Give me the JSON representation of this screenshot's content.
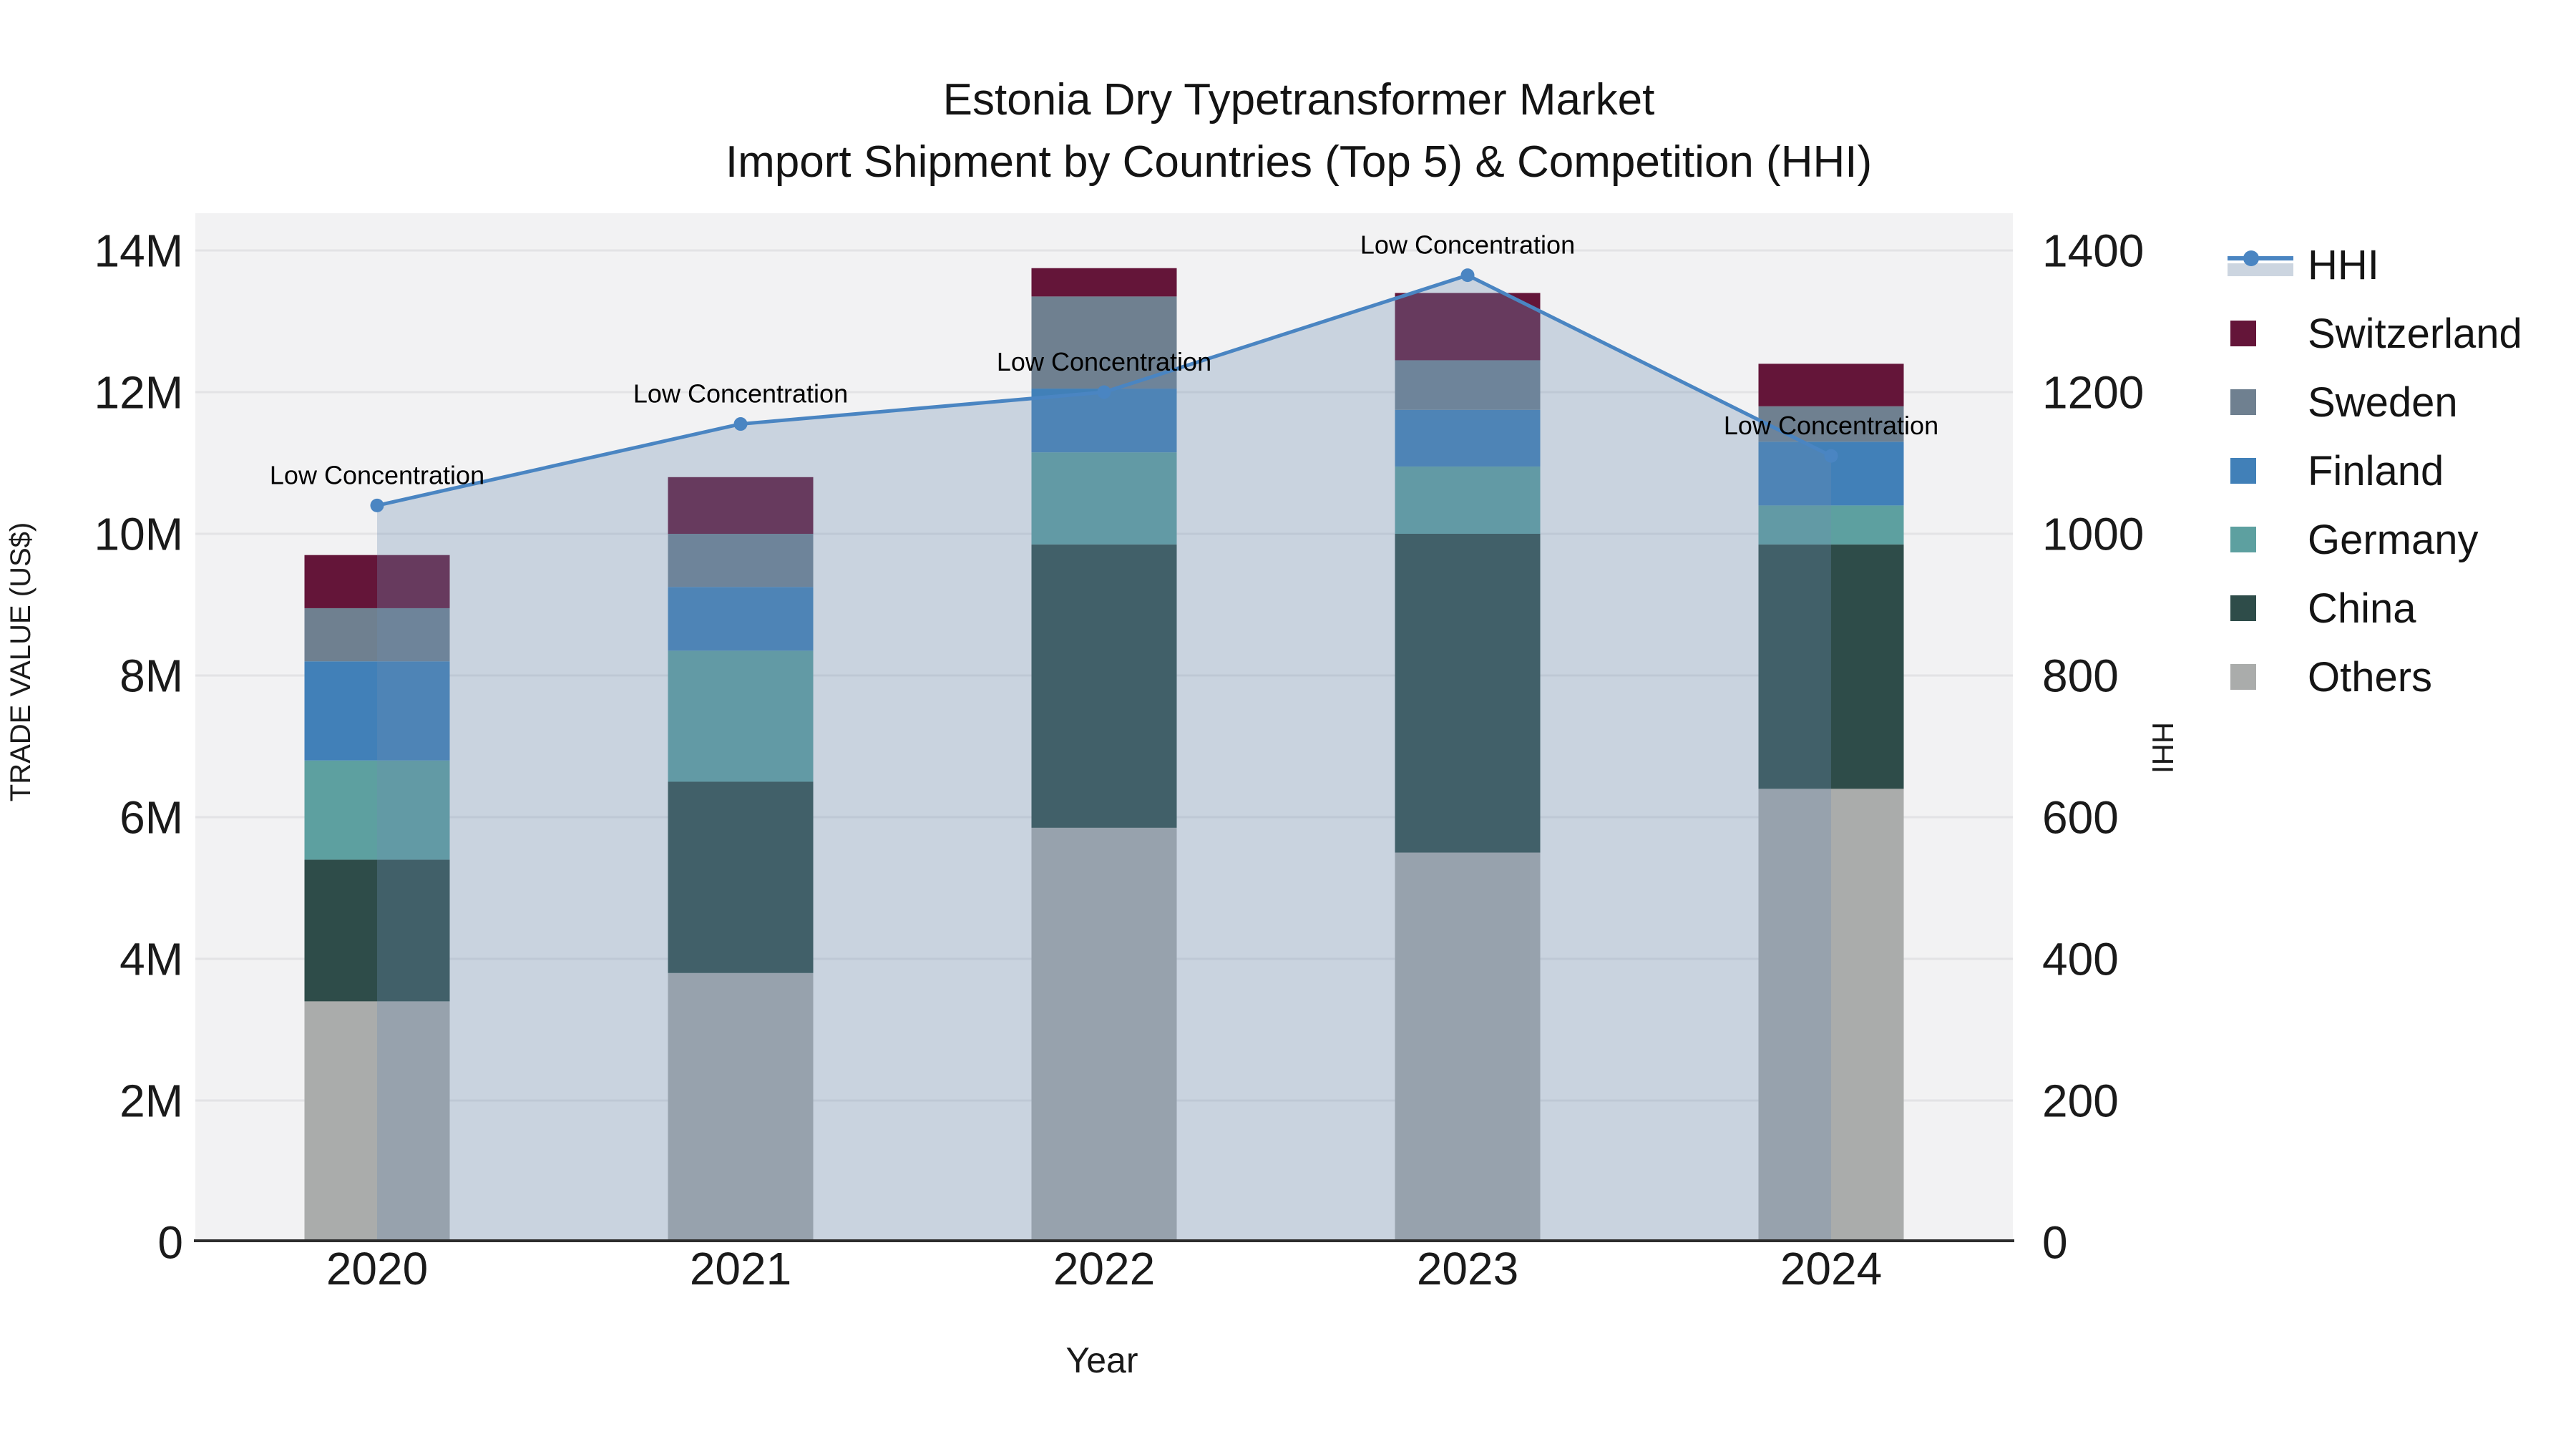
{
  "title": {
    "line1": "Estonia Dry Typetransformer Market",
    "line2": "Import Shipment by Countries (Top 5) & Competition (HHI)"
  },
  "axes": {
    "x": {
      "title": "Year",
      "tick_labels": [
        "2020",
        "2021",
        "2022",
        "2023",
        "2024"
      ]
    },
    "left": {
      "title": "TRADE VALUE (US$)",
      "tick_labels": [
        "0",
        "2M",
        "4M",
        "6M",
        "8M",
        "10M",
        "12M",
        "14M"
      ],
      "tick_values_millions": [
        0,
        2,
        4,
        6,
        8,
        10,
        12,
        14
      ],
      "range_millions": [
        0,
        14
      ]
    },
    "right": {
      "title": "HHI",
      "tick_labels": [
        "0",
        "200",
        "400",
        "600",
        "800",
        "1000",
        "1200",
        "1400"
      ],
      "tick_values": [
        0,
        200,
        400,
        600,
        800,
        1000,
        1200,
        1400
      ],
      "range": [
        0,
        1400
      ]
    }
  },
  "legend": {
    "items": [
      "HHI",
      "Switzerland",
      "Sweden",
      "Finland",
      "Germany",
      "China",
      "Others"
    ]
  },
  "chart_data": {
    "type": "bar",
    "subtype": "stacked-bars-with-hhi-line-area",
    "title": "Estonia Dry Typetransformer Market — Import Shipment by Countries (Top 5) & Competition (HHI)",
    "categories": [
      "2020",
      "2021",
      "2022",
      "2023",
      "2024"
    ],
    "xlabel": "Year",
    "ylabel_left": "TRADE VALUE (US$)",
    "ylabel_right": "HHI",
    "ylim_left_millions": [
      0,
      14
    ],
    "ylim_right": [
      0,
      1400
    ],
    "grid": true,
    "legend_position": "right",
    "bar_value_unit": "million US$",
    "stack_order": "bottom-to-top",
    "series": [
      {
        "name": "Others",
        "color": "#aaacab",
        "values_millions": [
          3.4,
          3.8,
          5.85,
          5.5,
          6.4
        ]
      },
      {
        "name": "China",
        "color": "#2e4c49",
        "values_millions": [
          2.0,
          2.7,
          4.0,
          4.5,
          3.45
        ]
      },
      {
        "name": "Germany",
        "color": "#5da0a0",
        "values_millions": [
          1.4,
          1.85,
          1.3,
          0.95,
          0.55
        ]
      },
      {
        "name": "Finland",
        "color": "#4180b8",
        "values_millions": [
          1.4,
          0.9,
          0.9,
          0.8,
          0.9
        ]
      },
      {
        "name": "Sweden",
        "color": "#6f8090",
        "values_millions": [
          0.75,
          0.75,
          1.3,
          0.7,
          0.5
        ]
      },
      {
        "name": "Switzerland",
        "color": "#641539",
        "values_millions": [
          0.75,
          0.8,
          0.4,
          0.95,
          0.6
        ]
      }
    ],
    "line_series": {
      "name": "HHI",
      "axis": "right",
      "color": "#4a85c2",
      "area_fill": "rgba(110,142,178,0.31)",
      "marker": "circle",
      "values": [
        1040,
        1155,
        1200,
        1365,
        1110
      ],
      "point_annotations": [
        "Low Concentration",
        "Low Concentration",
        "Low Concentration",
        "Low Concentration",
        "Low Concentration"
      ]
    }
  }
}
